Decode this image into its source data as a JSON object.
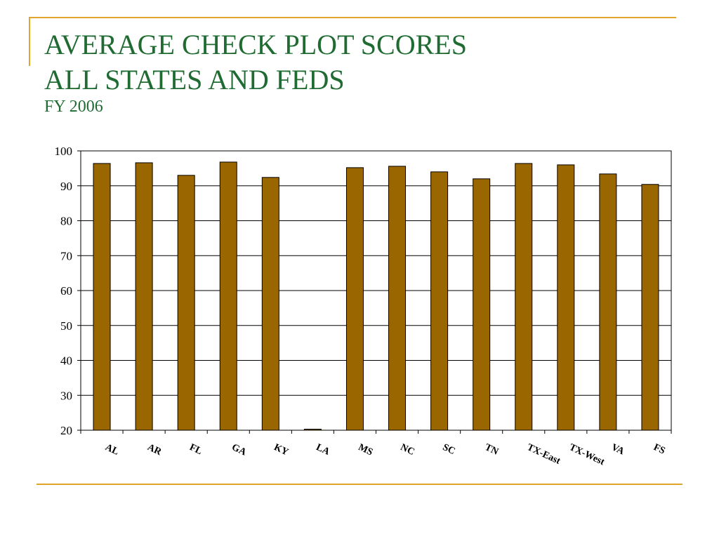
{
  "colors": {
    "title": "#1f6b32",
    "accent": "#e0a52a",
    "bar": "#996600",
    "bar_border": "#000000",
    "grid": "#000000"
  },
  "chart_data": {
    "type": "bar",
    "title_lines": [
      "AVERAGE CHECK PLOT SCORES",
      "ALL STATES AND FEDS"
    ],
    "subtitle": "FY 2006",
    "categories": [
      "AL",
      "AR",
      "FL",
      "GA",
      "KY",
      "LA",
      "MS",
      "NC",
      "SC",
      "TN",
      "TX-East",
      "TX-West",
      "VA",
      "FS"
    ],
    "values": [
      96.4,
      96.6,
      93.0,
      96.8,
      92.4,
      20.3,
      95.2,
      95.6,
      94.0,
      92.0,
      96.4,
      96.0,
      93.4,
      90.4
    ],
    "ylim": [
      20,
      100
    ],
    "yticks": [
      20,
      30,
      40,
      50,
      60,
      70,
      80,
      90,
      100
    ],
    "grid": true
  }
}
